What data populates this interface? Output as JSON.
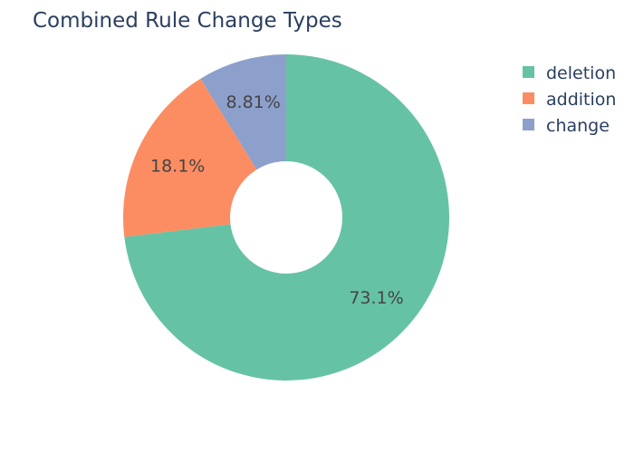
{
  "chart_data": {
    "type": "pie",
    "hole": true,
    "title": "Combined Rule Change Types",
    "legend_placement": "top-right",
    "slices": [
      {
        "label": "deletion",
        "value": 73.1,
        "display": "73.1%",
        "color": "#66c2a5"
      },
      {
        "label": "addition",
        "value": 18.1,
        "display": "18.1%",
        "color": "#fc8d62"
      },
      {
        "label": "change",
        "value": 8.81,
        "display": "8.81%",
        "color": "#8da0cb"
      }
    ]
  }
}
